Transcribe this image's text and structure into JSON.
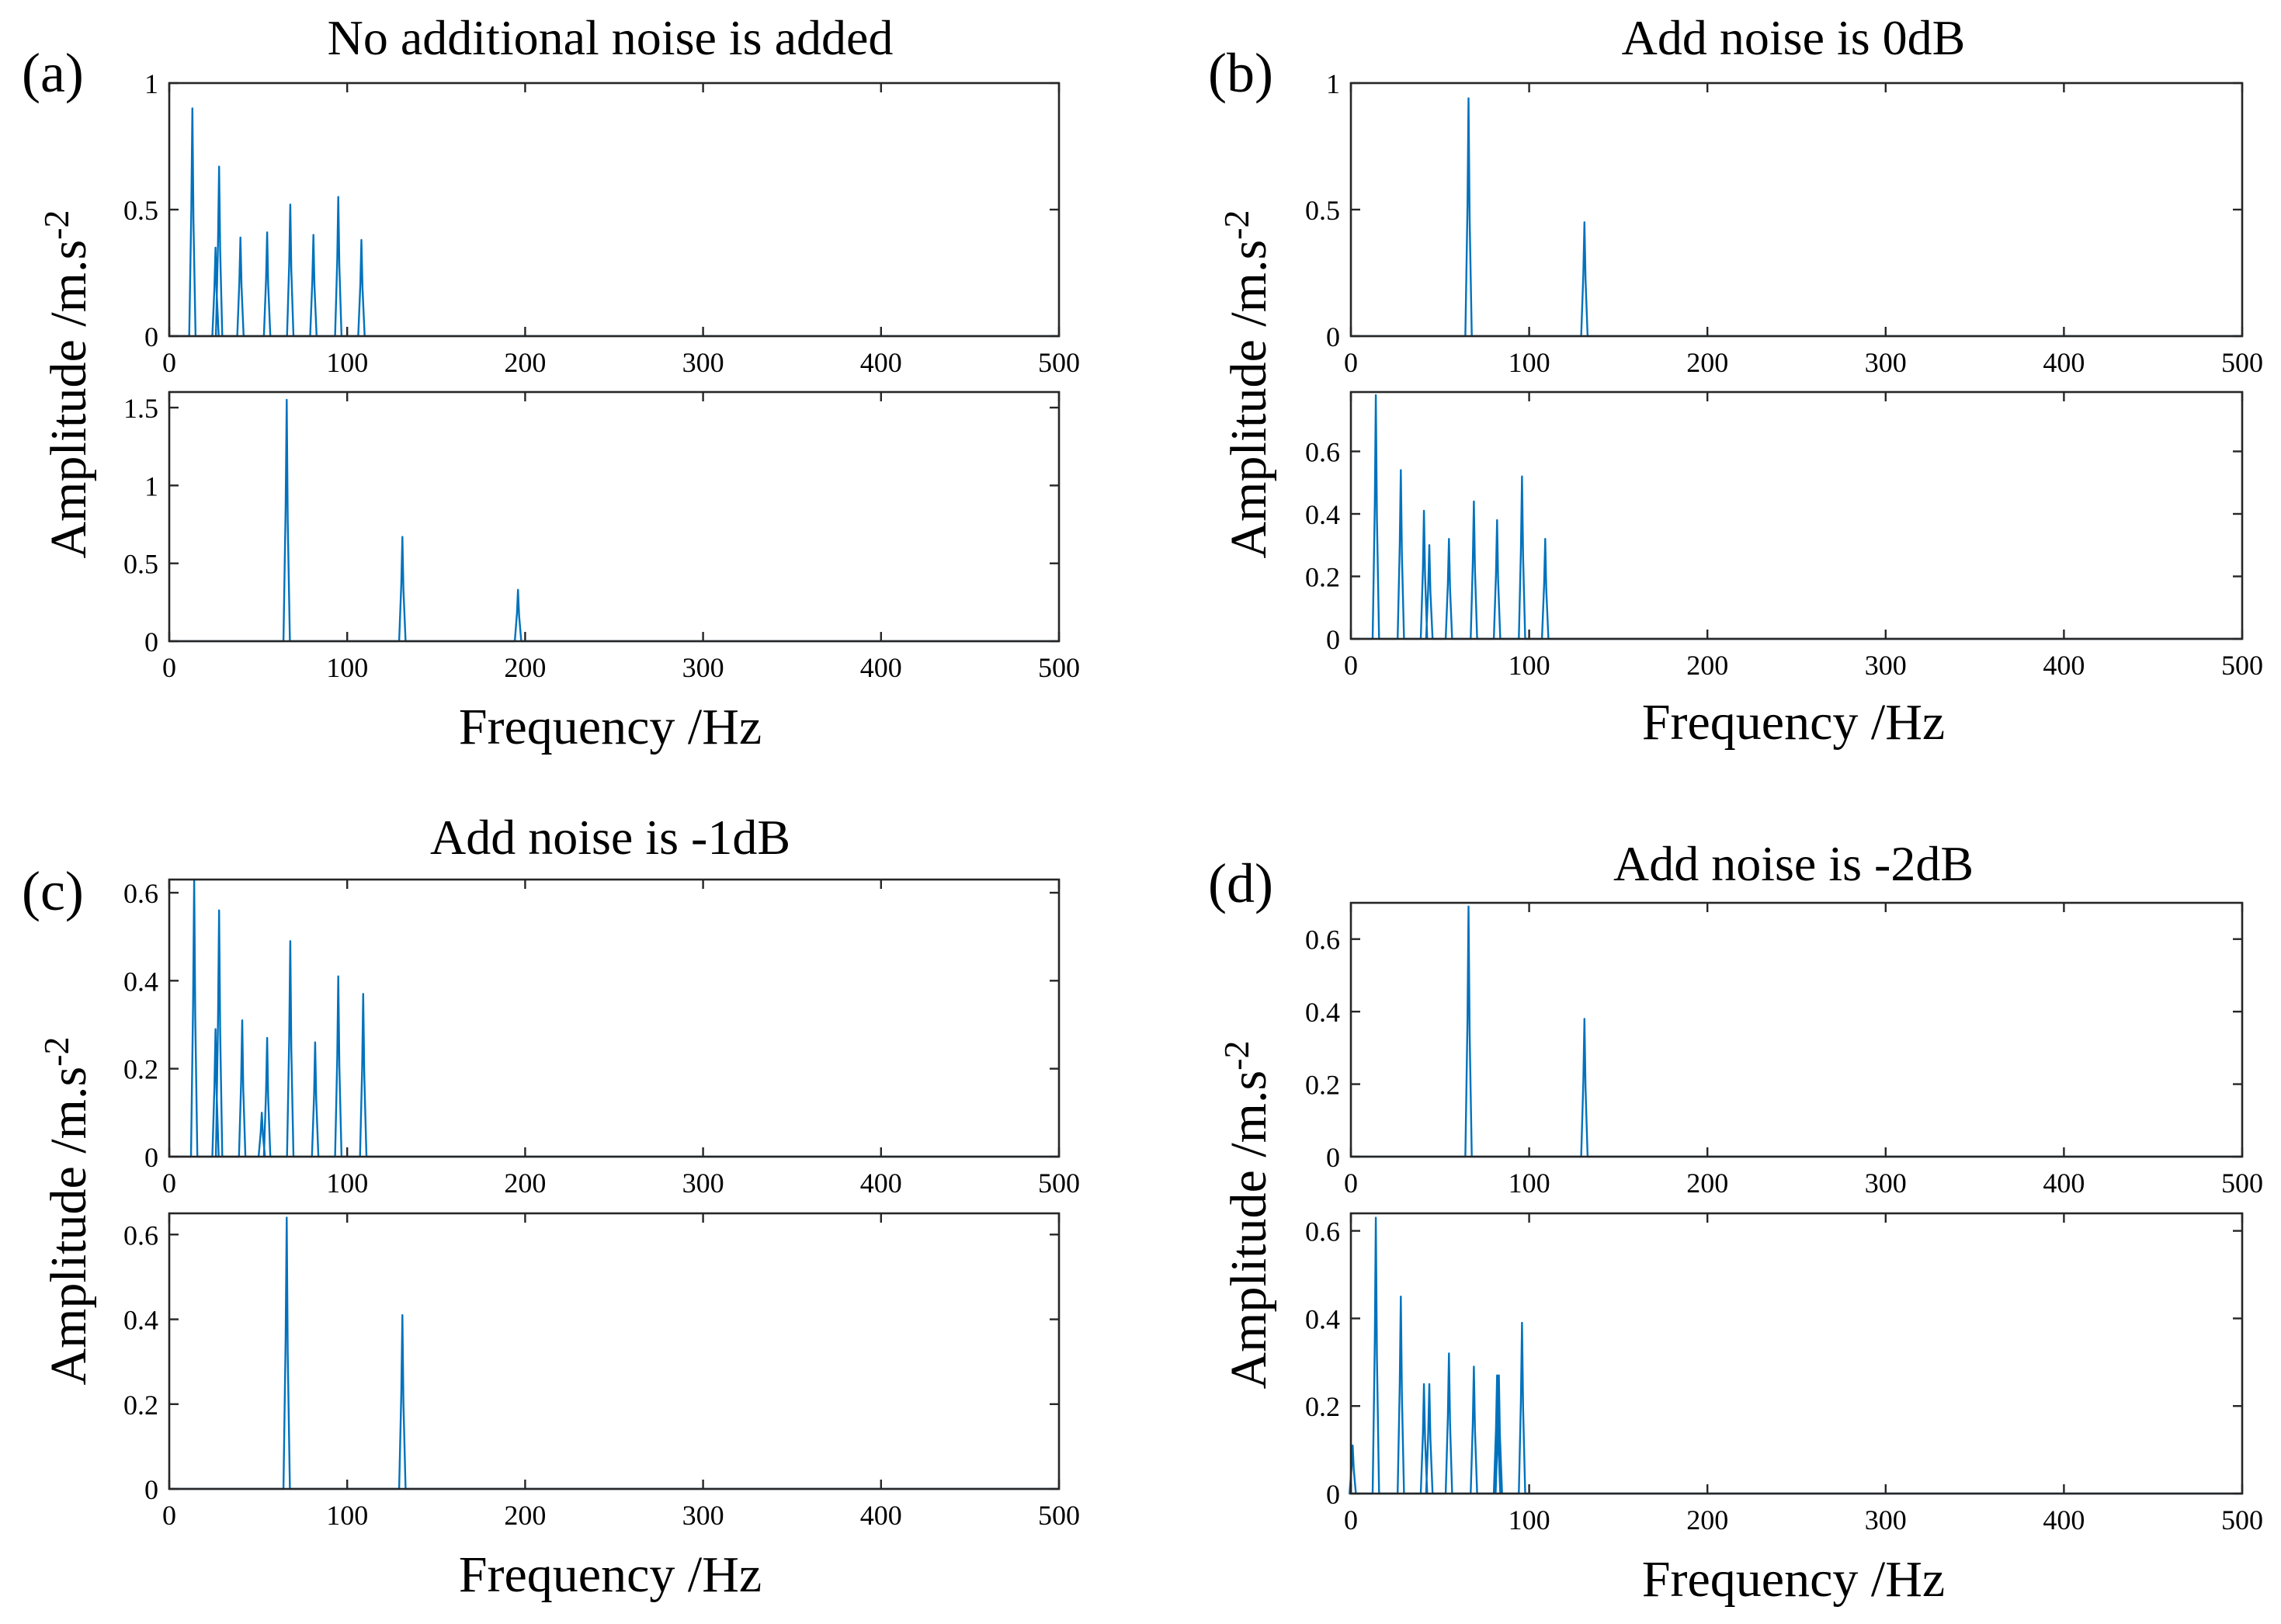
{
  "xlabel": "Frequency /Hz",
  "ylabel_html": "Amplitude /m.s",
  "ylabel_sup": "-2",
  "colors": {
    "series": "#0072BD",
    "axes": "#262626"
  },
  "chart_data": [
    {
      "type": "line",
      "letter": "(a)",
      "title": "No additional noise is added",
      "subplots": [
        {
          "xlim": [
            0,
            500
          ],
          "ylim": [
            0,
            1
          ],
          "xticks": [
            0,
            100,
            200,
            300,
            400,
            500
          ],
          "yticks": [
            0,
            0.5,
            1
          ],
          "ytick_labels": [
            "0",
            "0.5",
            "1"
          ],
          "peaks": [
            [
              13,
              0.9
            ],
            [
              26,
              0.35
            ],
            [
              28,
              0.67
            ],
            [
              40,
              0.39
            ],
            [
              55,
              0.41
            ],
            [
              68,
              0.52
            ],
            [
              81,
              0.4
            ],
            [
              95,
              0.55
            ],
            [
              108,
              0.38
            ]
          ]
        },
        {
          "xlim": [
            0,
            500
          ],
          "ylim": [
            0,
            1.6
          ],
          "xticks": [
            0,
            100,
            200,
            300,
            400,
            500
          ],
          "yticks": [
            0,
            0.5,
            1,
            1.5
          ],
          "ytick_labels": [
            "0",
            "0.5",
            "1",
            "1.5"
          ],
          "peaks": [
            [
              66,
              1.55
            ],
            [
              131,
              0.67
            ],
            [
              196,
              0.33
            ]
          ]
        }
      ]
    },
    {
      "type": "line",
      "letter": "(b)",
      "title": "Add noise is 0dB",
      "subplots": [
        {
          "xlim": [
            0,
            500
          ],
          "ylim": [
            0,
            1
          ],
          "xticks": [
            0,
            100,
            200,
            300,
            400,
            500
          ],
          "yticks": [
            0,
            0.5,
            1
          ],
          "ytick_labels": [
            "0",
            "0.5",
            "1"
          ],
          "peaks": [
            [
              66,
              0.94
            ],
            [
              131,
              0.45
            ]
          ]
        },
        {
          "xlim": [
            0,
            500
          ],
          "ylim": [
            0,
            0.79
          ],
          "xticks": [
            0,
            100,
            200,
            300,
            400,
            500
          ],
          "yticks": [
            0,
            0.2,
            0.4,
            0.6
          ],
          "ytick_labels": [
            "0",
            "0.2",
            "0.4",
            "0.6"
          ],
          "peaks": [
            [
              14,
              0.78
            ],
            [
              28,
              0.54
            ],
            [
              41,
              0.41
            ],
            [
              44,
              0.3
            ],
            [
              55,
              0.32
            ],
            [
              69,
              0.44
            ],
            [
              82,
              0.38
            ],
            [
              96,
              0.52
            ],
            [
              109,
              0.32
            ]
          ]
        }
      ]
    },
    {
      "type": "line",
      "letter": "(c)",
      "title": "Add noise is -1dB",
      "subplots": [
        {
          "xlim": [
            0,
            500
          ],
          "ylim": [
            0,
            0.63
          ],
          "xticks": [
            0,
            100,
            200,
            300,
            400,
            500
          ],
          "yticks": [
            0,
            0.2,
            0.4,
            0.6
          ],
          "ytick_labels": [
            "0",
            "0.2",
            "0.4",
            "0.6"
          ],
          "peaks": [
            [
              14,
              0.63
            ],
            [
              26,
              0.29
            ],
            [
              28,
              0.56
            ],
            [
              41,
              0.31
            ],
            [
              52,
              0.1
            ],
            [
              55,
              0.27
            ],
            [
              68,
              0.49
            ],
            [
              82,
              0.26
            ],
            [
              95,
              0.41
            ],
            [
              109,
              0.37
            ]
          ]
        },
        {
          "xlim": [
            0,
            500
          ],
          "ylim": [
            0,
            0.65
          ],
          "xticks": [
            0,
            100,
            200,
            300,
            400,
            500
          ],
          "yticks": [
            0,
            0.2,
            0.4,
            0.6
          ],
          "ytick_labels": [
            "0",
            "0.2",
            "0.4",
            "0.6"
          ],
          "peaks": [
            [
              66,
              0.64
            ],
            [
              131,
              0.41
            ]
          ]
        }
      ]
    },
    {
      "type": "line",
      "letter": "(d)",
      "title": "Add noise is -2dB",
      "subplots": [
        {
          "xlim": [
            0,
            500
          ],
          "ylim": [
            0,
            0.7
          ],
          "xticks": [
            0,
            100,
            200,
            300,
            400,
            500
          ],
          "yticks": [
            0,
            0.2,
            0.4,
            0.6
          ],
          "ytick_labels": [
            "0",
            "0.2",
            "0.4",
            "0.6"
          ],
          "peaks": [
            [
              66,
              0.69
            ],
            [
              131,
              0.38
            ]
          ]
        },
        {
          "xlim": [
            0,
            500
          ],
          "ylim": [
            0,
            0.64
          ],
          "xticks": [
            0,
            100,
            200,
            300,
            400,
            500
          ],
          "yticks": [
            0,
            0.2,
            0.4,
            0.6
          ],
          "ytick_labels": [
            "0",
            "0.2",
            "0.4",
            "0.6"
          ],
          "peaks": [
            [
              1,
              0.11
            ],
            [
              14,
              0.63
            ],
            [
              28,
              0.45
            ],
            [
              41,
              0.25
            ],
            [
              44,
              0.25
            ],
            [
              55,
              0.32
            ],
            [
              69,
              0.29
            ],
            [
              82,
              0.27
            ],
            [
              83,
              0.27
            ],
            [
              96,
              0.39
            ]
          ]
        }
      ]
    }
  ]
}
